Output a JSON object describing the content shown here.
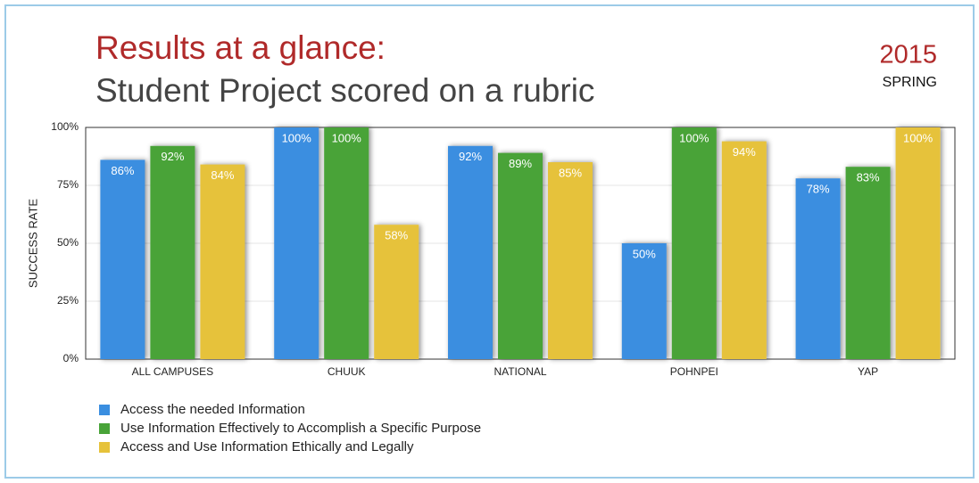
{
  "chart_data": {
    "type": "bar",
    "title": "Results at a glance:",
    "subtitle": "Student Project scored on a rubric",
    "year": "2015",
    "term": "SPRING",
    "ylabel": "SUCCESS RATE",
    "categories": [
      "ALL CAMPUSES",
      "CHUUK",
      "NATIONAL",
      "POHNPEI",
      "YAP"
    ],
    "series": [
      {
        "name": "Access the needed Information",
        "color": "#3a8ee0",
        "values": [
          86,
          100,
          92,
          50,
          78
        ],
        "value_labels": [
          "86%",
          "100%",
          "92%",
          "50%",
          "78%"
        ]
      },
      {
        "name": "Use Information Effectively to Accomplish a Specific Purpose",
        "color": "#48a338",
        "values": [
          92,
          100,
          89,
          100,
          83
        ],
        "value_labels": [
          "92%",
          "100%",
          "89%",
          "100%",
          "83%"
        ]
      },
      {
        "name": "Access and Use Information Ethically and Legally",
        "color": "#e6c23a",
        "values": [
          84,
          58,
          85,
          94,
          100
        ],
        "value_labels": [
          "84%",
          "58%",
          "85%",
          "94%",
          "100%"
        ]
      }
    ],
    "ylim": [
      0,
      100
    ],
    "yticks": [
      {
        "value": 0,
        "label": "0%"
      },
      {
        "value": 25,
        "label": "25%"
      },
      {
        "value": 50,
        "label": "50%"
      },
      {
        "value": 75,
        "label": "75%"
      },
      {
        "value": 100,
        "label": "100%"
      }
    ],
    "grid": true,
    "legend": "bottom-left"
  }
}
